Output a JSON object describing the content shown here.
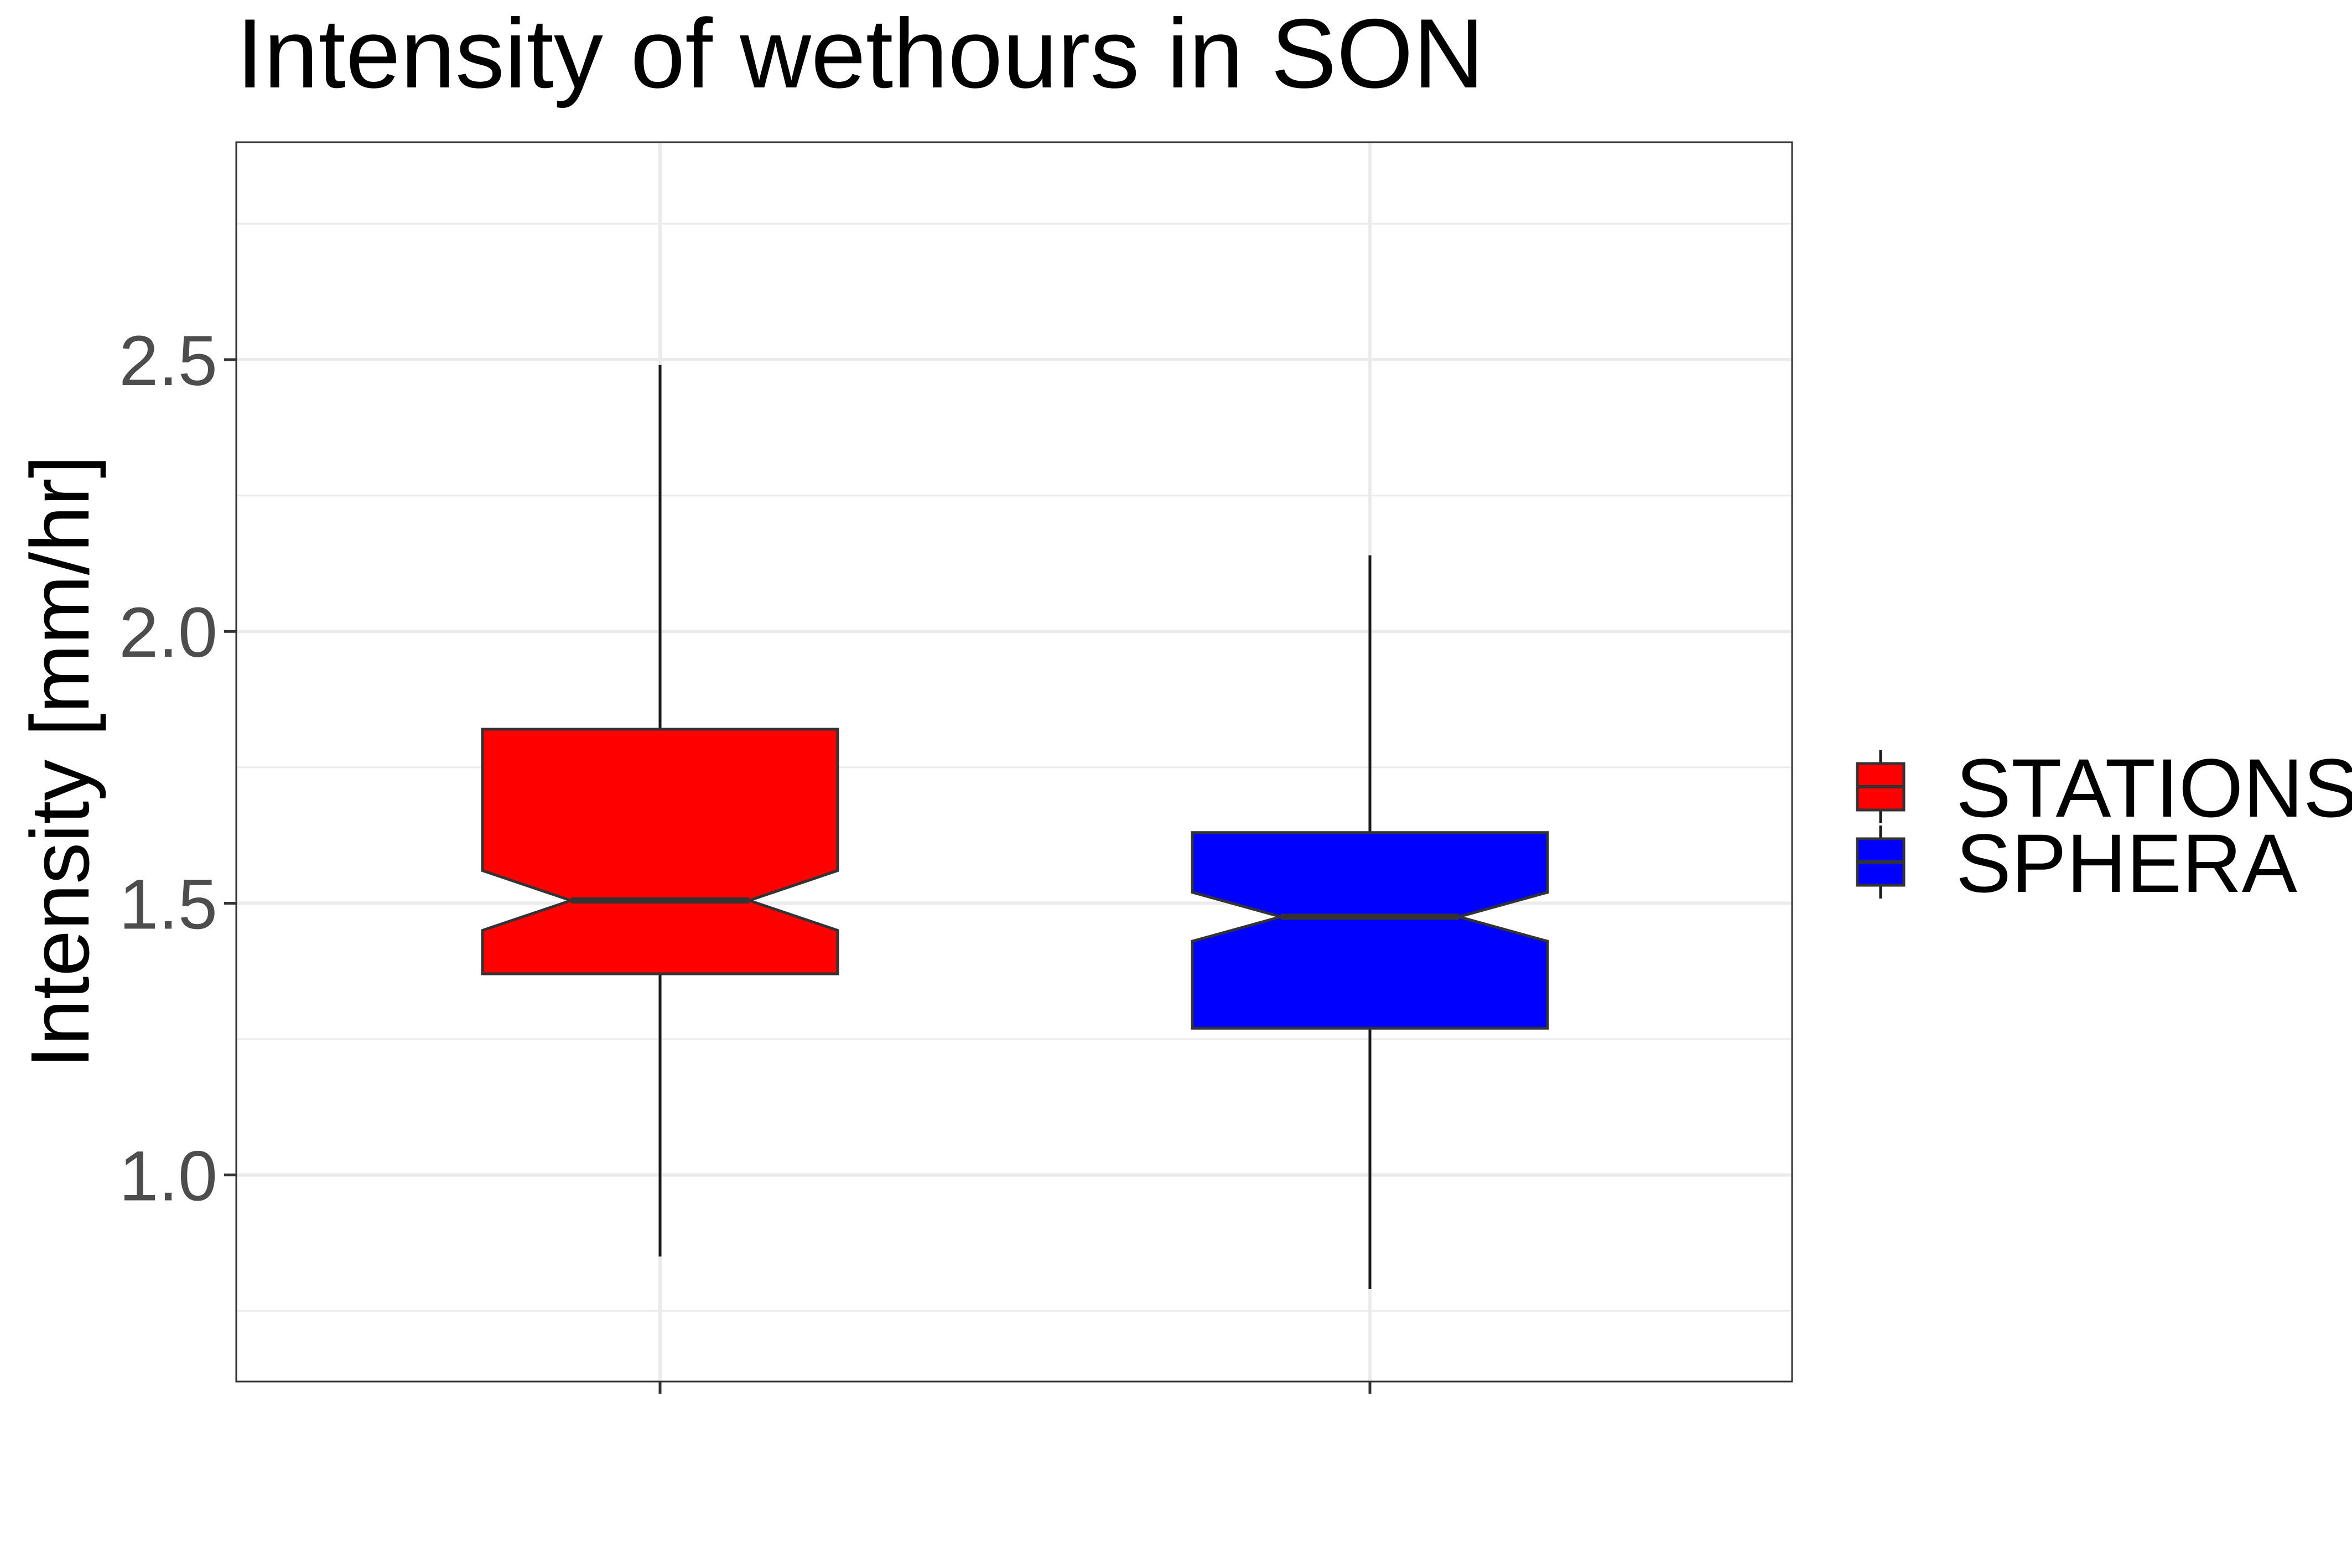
{
  "chart_data": {
    "type": "boxplot",
    "title": "Intensity of wethours in SON",
    "xlabel": "",
    "ylabel": "Intensity [mm/hr]",
    "ylim": [
      0.62,
      2.9
    ],
    "y_ticks": [
      "1.0",
      "1.5",
      "2.0",
      "2.5"
    ],
    "y_tick_values": [
      1.0,
      1.5,
      2.0,
      2.5
    ],
    "y_minor_grid": [
      0.75,
      1.25,
      1.75,
      2.25,
      2.75
    ],
    "grid": true,
    "notched": true,
    "legend_position": "right",
    "series": [
      {
        "name": "STATIONS",
        "color": "#ff0000",
        "whisker_low": 0.85,
        "q1": 1.37,
        "median": 1.505,
        "q3": 1.82,
        "whisker_high": 2.49,
        "notch_low": 1.45,
        "notch_high": 1.56
      },
      {
        "name": "SPHERA",
        "color": "#0000ff",
        "whisker_low": 0.79,
        "q1": 1.27,
        "median": 1.475,
        "q3": 1.63,
        "whisker_high": 2.14,
        "notch_low": 1.43,
        "notch_high": 1.52
      }
    ]
  }
}
